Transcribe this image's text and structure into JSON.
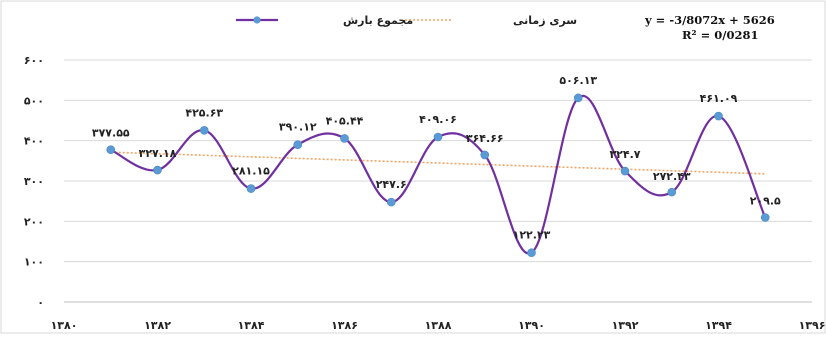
{
  "chart_data": {
    "type": "line",
    "title": "",
    "xlabel": "",
    "ylabel": "",
    "x_ticks": [
      "۱۳۸۰",
      "۱۳۸۲",
      "۱۳۸۴",
      "۱۳۸۶",
      "۱۳۸۸",
      "۱۳۹۰",
      "۱۳۹۲",
      "۱۳۹۴",
      "۱۳۹۶"
    ],
    "x_tick_values": [
      1380,
      1382,
      1384,
      1386,
      1388,
      1390,
      1392,
      1394,
      1396
    ],
    "y_ticks": [
      "۰",
      "۱۰۰",
      "۲۰۰",
      "۳۰۰",
      "۴۰۰",
      "۵۰۰",
      "۶۰۰"
    ],
    "y_tick_values": [
      0,
      100,
      200,
      300,
      400,
      500,
      600
    ],
    "xlim": [
      1380,
      1396
    ],
    "ylim": [
      0,
      600
    ],
    "grid": "horizontal",
    "legend_position": "top-center",
    "series": [
      {
        "name": "مجموع بارش",
        "color": "#7030A0",
        "marker_color": "#5B9BD5",
        "x": [
          1381,
          1382,
          1383,
          1384,
          1385,
          1386,
          1387,
          1388,
          1389,
          1390,
          1391,
          1392,
          1393,
          1394,
          1395
        ],
        "values": [
          377.55,
          327.18,
          425.63,
          281.15,
          390.12,
          405.44,
          247.6,
          409.06,
          364.66,
          122.23,
          506.13,
          324.7,
          272.43,
          461.09,
          209.5
        ],
        "labels": [
          "۳۷۷.۵۵",
          "۳۲۷.۱۸",
          "۴۲۵.۶۳",
          "۲۸۱.۱۵",
          "۳۹۰.۱۲",
          "۴۰۵.۴۴",
          "۲۴۷.۶",
          "۴۰۹.۰۶",
          "۳۶۴.۶۶",
          "۱۲۲.۲۳",
          "۵۰۶.۱۳",
          "۳۲۴.۷",
          "۲۷۲.۴۳",
          "۴۶۱.۰۹",
          "۲۰۹.۵"
        ]
      },
      {
        "name": "سری زمانی",
        "type": "trendline",
        "color": "#F4A460",
        "x": [
          1381,
          1395
        ],
        "values": [
          371.4,
          317.8
        ]
      }
    ],
    "equation": "y = -3/8072x + 5626",
    "r_squared": "R² = 0/0281"
  }
}
